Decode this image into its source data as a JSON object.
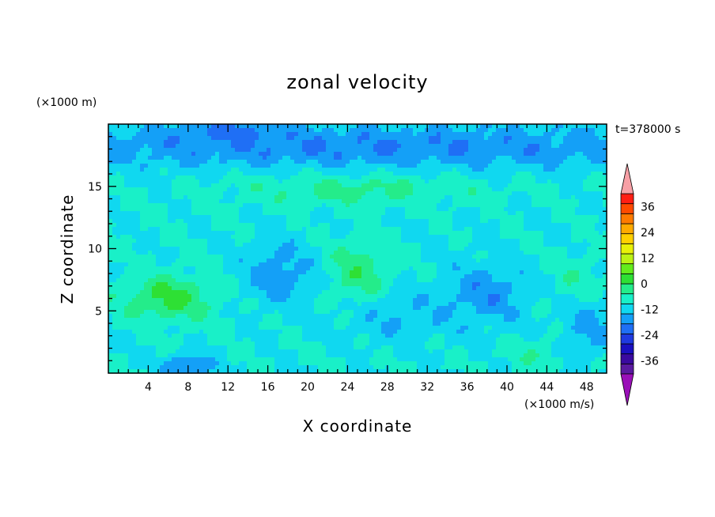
{
  "chart_data": {
    "type": "heatmap",
    "title": "zonal velocity",
    "xlabel": "X coordinate",
    "ylabel": "Z coordinate",
    "x_unit": "(×1000 m/s)",
    "y_unit": "(×1000 m)",
    "time_label": "t=378000 s",
    "xlim": [
      0,
      50
    ],
    "ylim": [
      0,
      20
    ],
    "x_ticks": [
      4,
      8,
      12,
      16,
      20,
      24,
      28,
      32,
      36,
      40,
      44,
      48
    ],
    "y_ticks": [
      5,
      10,
      15
    ],
    "colorbar": {
      "labels": [
        "36",
        "24",
        "12",
        "0",
        "-12",
        "-24",
        "-36"
      ],
      "levels": [
        36,
        24,
        12,
        0,
        -12,
        -24,
        -36
      ],
      "vmin": -42,
      "vmax": 42,
      "step": 6,
      "colors": [
        "#5a1aa0",
        "#3a0aa0",
        "#1a10c0",
        "#1f3ae0",
        "#1f6ff5",
        "#14a0f7",
        "#10d8f0",
        "#19f0c8",
        "#24ec8a",
        "#2ee034",
        "#64ec1c",
        "#bcf214",
        "#e8f008",
        "#ffd000",
        "#ffaa00",
        "#ff7a00",
        "#ff4a00",
        "#ff1e14"
      ],
      "over_color": "#f7a0a6",
      "under_color": "#9a10b8"
    },
    "field": {
      "base": 0,
      "features": [
        {
          "x": 25,
          "y": 18.2,
          "sx": 40,
          "sy": 1.8,
          "amp": -12
        },
        {
          "x": 12,
          "y": 19.6,
          "sx": 5,
          "sy": 0.8,
          "amp": -8
        },
        {
          "x": 25,
          "y": 14.8,
          "sx": 12,
          "sy": 1.2,
          "amp": 8
        },
        {
          "x": 6,
          "y": 6.0,
          "sx": 4.5,
          "sy": 1.8,
          "amp": 14
        },
        {
          "x": 25,
          "y": 8.0,
          "sx": 3,
          "sy": 2.5,
          "amp": 10
        },
        {
          "x": 17,
          "y": 8.0,
          "sx": 3.5,
          "sy": 2.5,
          "amp": -10
        },
        {
          "x": 8,
          "y": 0.6,
          "sx": 2.5,
          "sy": 0.8,
          "amp": -14
        },
        {
          "x": 38,
          "y": 6.5,
          "sx": 4,
          "sy": 2.5,
          "amp": -10
        },
        {
          "x": 48,
          "y": 3.5,
          "sx": 2.5,
          "sy": 2.5,
          "amp": -8
        },
        {
          "x": 47,
          "y": 7.5,
          "sx": 2.5,
          "sy": 2,
          "amp": 5
        },
        {
          "x": 43,
          "y": 1.5,
          "sx": 3,
          "sy": 1.2,
          "amp": 5
        },
        {
          "x": 29,
          "y": 4.5,
          "sx": 6,
          "sy": 2,
          "amp": -6
        }
      ]
    }
  }
}
